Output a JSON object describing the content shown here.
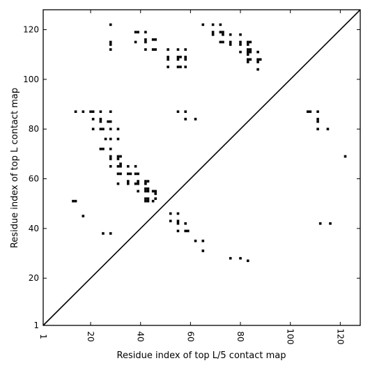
{
  "chart_data": {
    "type": "scatter",
    "title": "",
    "xlabel": "Residue index of top L/5 contact map",
    "ylabel": "Residue index of top L contact map",
    "xlim": [
      1,
      128
    ],
    "ylim": [
      1,
      128
    ],
    "xticks": [
      1,
      20,
      40,
      60,
      80,
      100,
      120
    ],
    "yticks": [
      1,
      20,
      40,
      60,
      80,
      100,
      120
    ],
    "x_tick_rotation": 90,
    "marker": "square",
    "marker_color": "#000000",
    "diagonal_line": true,
    "grid": false,
    "series": [
      {
        "region": "upper-left (top L map)",
        "points": [
          [
            13,
            51
          ],
          [
            14,
            51
          ],
          [
            17,
            45
          ],
          [
            14,
            87
          ],
          [
            17,
            87
          ],
          [
            20,
            87
          ],
          [
            21,
            87
          ],
          [
            24,
            87
          ],
          [
            28,
            87
          ],
          [
            21,
            84
          ],
          [
            24,
            84
          ],
          [
            24,
            83
          ],
          [
            27,
            83
          ],
          [
            28,
            83
          ],
          [
            21,
            80
          ],
          [
            24,
            80
          ],
          [
            25,
            80
          ],
          [
            28,
            80
          ],
          [
            31,
            80
          ],
          [
            26,
            76
          ],
          [
            28,
            76
          ],
          [
            31,
            76
          ],
          [
            24,
            72
          ],
          [
            25,
            72
          ],
          [
            28,
            72
          ],
          [
            28,
            69
          ],
          [
            28,
            68
          ],
          [
            31,
            69
          ],
          [
            32,
            69
          ],
          [
            31,
            68
          ],
          [
            28,
            65
          ],
          [
            31,
            65
          ],
          [
            32,
            66
          ],
          [
            32,
            65
          ],
          [
            35,
            65
          ],
          [
            38,
            65
          ],
          [
            31,
            62
          ],
          [
            32,
            62
          ],
          [
            35,
            62
          ],
          [
            36,
            62
          ],
          [
            38,
            62
          ],
          [
            39,
            62
          ],
          [
            31,
            58
          ],
          [
            35,
            59
          ],
          [
            35,
            58
          ],
          [
            38,
            58
          ],
          [
            39,
            59
          ],
          [
            39,
            58
          ],
          [
            42,
            59
          ],
          [
            43,
            59
          ],
          [
            42,
            58
          ],
          [
            39,
            55
          ],
          [
            42,
            56
          ],
          [
            43,
            56
          ],
          [
            42,
            55
          ],
          [
            43,
            55
          ],
          [
            45,
            55
          ],
          [
            46,
            55
          ],
          [
            46,
            54
          ],
          [
            42,
            52
          ],
          [
            43,
            52
          ],
          [
            46,
            52
          ],
          [
            42,
            51
          ],
          [
            43,
            51
          ],
          [
            45,
            51
          ],
          [
            25,
            38
          ],
          [
            28,
            38
          ],
          [
            28,
            122
          ],
          [
            28,
            115
          ],
          [
            28,
            114
          ],
          [
            28,
            112
          ],
          [
            38,
            119
          ],
          [
            39,
            119
          ],
          [
            42,
            119
          ],
          [
            38,
            115
          ],
          [
            42,
            116
          ],
          [
            42,
            115
          ],
          [
            45,
            116
          ],
          [
            46,
            116
          ],
          [
            42,
            112
          ],
          [
            45,
            112
          ],
          [
            46,
            112
          ],
          [
            51,
            112
          ],
          [
            51,
            109
          ],
          [
            51,
            108
          ],
          [
            51,
            105
          ],
          [
            55,
            112
          ],
          [
            55,
            109
          ],
          [
            55,
            108
          ],
          [
            56,
            109
          ],
          [
            55,
            105
          ],
          [
            56,
            105
          ],
          [
            58,
            112
          ],
          [
            58,
            109
          ],
          [
            58,
            108
          ],
          [
            58,
            105
          ],
          [
            65,
            122
          ],
          [
            69,
            122
          ],
          [
            72,
            122
          ],
          [
            69,
            119
          ],
          [
            69,
            118
          ],
          [
            72,
            119
          ],
          [
            73,
            119
          ],
          [
            73,
            118
          ],
          [
            76,
            118
          ],
          [
            80,
            118
          ],
          [
            72,
            115
          ],
          [
            73,
            115
          ],
          [
            76,
            115
          ],
          [
            76,
            114
          ],
          [
            80,
            115
          ],
          [
            80,
            114
          ],
          [
            80,
            111
          ],
          [
            83,
            115
          ],
          [
            84,
            115
          ],
          [
            83,
            114
          ],
          [
            83,
            112
          ],
          [
            84,
            112
          ],
          [
            83,
            111
          ],
          [
            84,
            111
          ],
          [
            87,
            111
          ],
          [
            83,
            110
          ],
          [
            83,
            108
          ],
          [
            84,
            108
          ],
          [
            87,
            108
          ],
          [
            88,
            108
          ],
          [
            87,
            107
          ],
          [
            83,
            107
          ],
          [
            87,
            104
          ],
          [
            55,
            87
          ],
          [
            58,
            87
          ],
          [
            58,
            84
          ],
          [
            62,
            84
          ],
          [
            52,
            46
          ],
          [
            55,
            46
          ],
          [
            52,
            43
          ],
          [
            55,
            43
          ],
          [
            55,
            42
          ],
          [
            58,
            42
          ],
          [
            55,
            39
          ],
          [
            58,
            39
          ],
          [
            59,
            39
          ],
          [
            62,
            35
          ],
          [
            65,
            35
          ],
          [
            65,
            31
          ],
          [
            76,
            28
          ],
          [
            80,
            28
          ],
          [
            83,
            27
          ],
          [
            107,
            87
          ],
          [
            108,
            87
          ],
          [
            111,
            87
          ],
          [
            111,
            84
          ],
          [
            111,
            83
          ],
          [
            111,
            80
          ],
          [
            115,
            80
          ],
          [
            122,
            69
          ],
          [
            112,
            42
          ],
          [
            116,
            42
          ]
        ]
      }
    ]
  }
}
